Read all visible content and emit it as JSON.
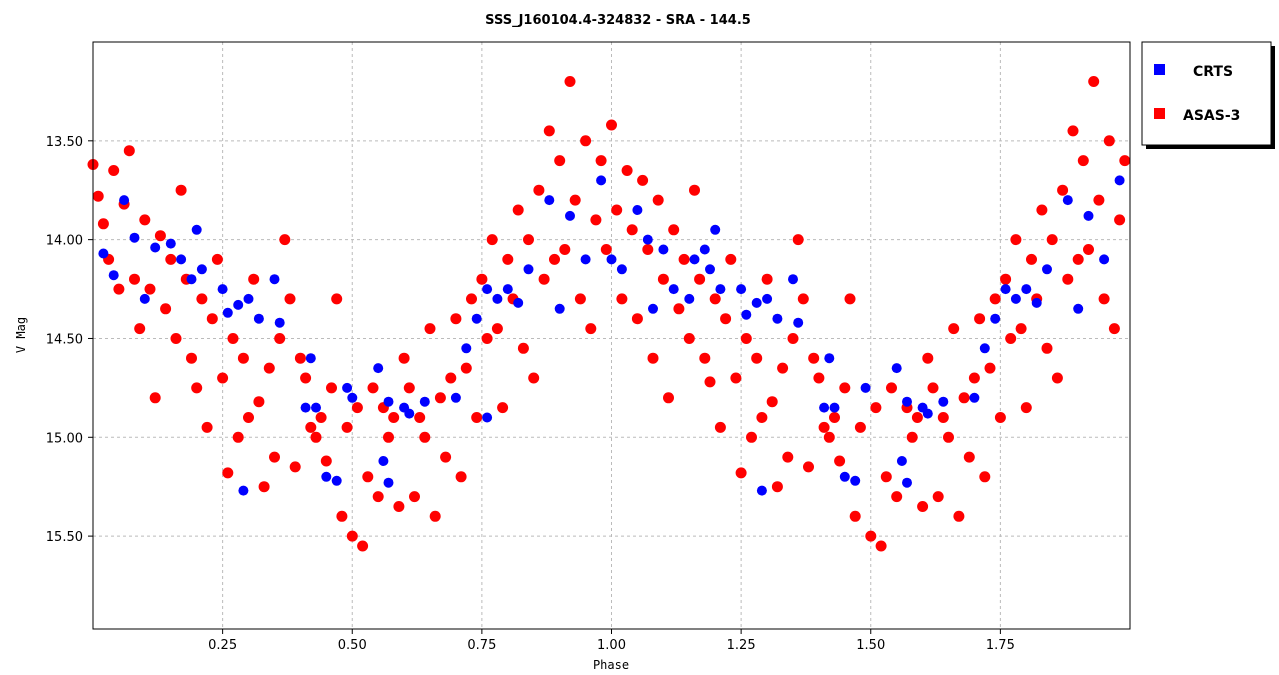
{
  "chart_data": {
    "type": "scatter",
    "title": "SSS_J160104.4-324832  -  SRA  -  144.5",
    "xlabel": "Phase",
    "ylabel": "V Mag",
    "xlim": [
      0.0,
      2.0
    ],
    "ylim": [
      15.97,
      13.0
    ],
    "y_inverted": true,
    "grid": true,
    "grid_style": "dashed",
    "legend_position": "outside-top-right",
    "xticks": [
      0.25,
      0.5,
      0.75,
      1.0,
      1.25,
      1.5,
      1.75
    ],
    "xtick_labels": [
      "0.25",
      "0.50",
      "0.75",
      "1.00",
      "1.25",
      "1.50",
      "1.75"
    ],
    "yticks": [
      13.5,
      14.0,
      14.5,
      15.0,
      15.5
    ],
    "ytick_labels": [
      "13.50",
      "14.00",
      "14.50",
      "15.00",
      "15.50"
    ],
    "series": [
      {
        "name": "CRTS",
        "color": "#0000ff",
        "points": [
          [
            0.02,
            14.07
          ],
          [
            0.04,
            14.18
          ],
          [
            0.06,
            13.8
          ],
          [
            0.08,
            13.99
          ],
          [
            0.1,
            14.3
          ],
          [
            0.12,
            14.04
          ],
          [
            0.15,
            14.02
          ],
          [
            0.17,
            14.1
          ],
          [
            0.19,
            14.2
          ],
          [
            0.2,
            13.95
          ],
          [
            0.21,
            14.15
          ],
          [
            0.25,
            14.25
          ],
          [
            0.26,
            14.37
          ],
          [
            0.28,
            14.33
          ],
          [
            0.29,
            15.27
          ],
          [
            0.3,
            14.3
          ],
          [
            0.32,
            14.4
          ],
          [
            0.35,
            14.2
          ],
          [
            0.36,
            14.42
          ],
          [
            0.42,
            14.6
          ],
          [
            0.41,
            14.85
          ],
          [
            0.43,
            14.85
          ],
          [
            0.45,
            15.2
          ],
          [
            0.47,
            15.22
          ],
          [
            0.49,
            14.75
          ],
          [
            0.5,
            14.8
          ],
          [
            0.55,
            14.65
          ],
          [
            0.56,
            15.12
          ],
          [
            0.57,
            15.23
          ],
          [
            0.57,
            14.82
          ],
          [
            0.6,
            14.85
          ],
          [
            0.61,
            14.88
          ],
          [
            0.64,
            14.82
          ],
          [
            0.7,
            14.8
          ],
          [
            0.72,
            14.55
          ],
          [
            0.74,
            14.4
          ],
          [
            0.76,
            14.25
          ],
          [
            0.76,
            14.9
          ],
          [
            0.78,
            14.3
          ],
          [
            0.8,
            14.25
          ],
          [
            0.82,
            14.32
          ],
          [
            0.84,
            14.15
          ],
          [
            0.88,
            13.8
          ],
          [
            0.9,
            14.35
          ],
          [
            0.92,
            13.88
          ],
          [
            0.95,
            14.1
          ],
          [
            0.98,
            13.7
          ],
          [
            1.0,
            14.1
          ],
          [
            1.02,
            14.15
          ],
          [
            1.05,
            13.85
          ],
          [
            1.07,
            14.0
          ],
          [
            1.08,
            14.35
          ],
          [
            1.1,
            14.05
          ],
          [
            1.12,
            14.25
          ],
          [
            1.15,
            14.3
          ],
          [
            1.16,
            14.1
          ],
          [
            1.18,
            14.05
          ],
          [
            1.19,
            14.15
          ],
          [
            1.2,
            13.95
          ],
          [
            1.21,
            14.25
          ],
          [
            1.25,
            14.25
          ],
          [
            1.26,
            14.38
          ],
          [
            1.28,
            14.32
          ],
          [
            1.29,
            15.27
          ],
          [
            1.3,
            14.3
          ],
          [
            1.32,
            14.4
          ],
          [
            1.35,
            14.2
          ],
          [
            1.36,
            14.42
          ],
          [
            1.42,
            14.6
          ],
          [
            1.41,
            14.85
          ],
          [
            1.43,
            14.85
          ],
          [
            1.45,
            15.2
          ],
          [
            1.47,
            15.22
          ],
          [
            1.49,
            14.75
          ],
          [
            1.55,
            14.65
          ],
          [
            1.56,
            15.12
          ],
          [
            1.57,
            15.23
          ],
          [
            1.57,
            14.82
          ],
          [
            1.6,
            14.85
          ],
          [
            1.61,
            14.88
          ],
          [
            1.64,
            14.82
          ],
          [
            1.7,
            14.8
          ],
          [
            1.72,
            14.55
          ],
          [
            1.74,
            14.4
          ],
          [
            1.76,
            14.25
          ],
          [
            1.78,
            14.3
          ],
          [
            1.8,
            14.25
          ],
          [
            1.82,
            14.32
          ],
          [
            1.84,
            14.15
          ],
          [
            1.88,
            13.8
          ],
          [
            1.9,
            14.35
          ],
          [
            1.92,
            13.88
          ],
          [
            1.95,
            14.1
          ],
          [
            1.98,
            13.7
          ]
        ]
      },
      {
        "name": "ASAS-3",
        "color": "#ff0000",
        "points": [
          [
            0.0,
            13.62
          ],
          [
            0.01,
            13.78
          ],
          [
            0.02,
            13.92
          ],
          [
            0.03,
            14.1
          ],
          [
            0.04,
            13.65
          ],
          [
            0.05,
            14.25
          ],
          [
            0.06,
            13.82
          ],
          [
            0.07,
            13.55
          ],
          [
            0.08,
            14.2
          ],
          [
            0.09,
            14.45
          ],
          [
            0.1,
            13.9
          ],
          [
            0.11,
            14.25
          ],
          [
            0.12,
            14.8
          ],
          [
            0.13,
            13.98
          ],
          [
            0.14,
            14.35
          ],
          [
            0.15,
            14.1
          ],
          [
            0.16,
            14.5
          ],
          [
            0.17,
            13.75
          ],
          [
            0.18,
            14.2
          ],
          [
            0.19,
            14.6
          ],
          [
            0.2,
            14.75
          ],
          [
            0.21,
            14.3
          ],
          [
            0.22,
            14.95
          ],
          [
            0.23,
            14.4
          ],
          [
            0.24,
            14.1
          ],
          [
            0.25,
            14.7
          ],
          [
            0.26,
            15.18
          ],
          [
            0.27,
            14.5
          ],
          [
            0.28,
            15.0
          ],
          [
            0.29,
            14.6
          ],
          [
            0.3,
            14.9
          ],
          [
            0.31,
            14.2
          ],
          [
            0.32,
            14.82
          ],
          [
            0.33,
            15.25
          ],
          [
            0.34,
            14.65
          ],
          [
            0.35,
            15.1
          ],
          [
            0.36,
            14.5
          ],
          [
            0.37,
            14.0
          ],
          [
            0.38,
            14.3
          ],
          [
            0.39,
            15.15
          ],
          [
            0.4,
            14.6
          ],
          [
            0.41,
            14.7
          ],
          [
            0.42,
            14.95
          ],
          [
            0.43,
            15.0
          ],
          [
            0.44,
            14.9
          ],
          [
            0.45,
            15.12
          ],
          [
            0.46,
            14.75
          ],
          [
            0.47,
            14.3
          ],
          [
            0.48,
            15.4
          ],
          [
            0.49,
            14.95
          ],
          [
            0.5,
            15.5
          ],
          [
            0.51,
            14.85
          ],
          [
            0.52,
            15.55
          ],
          [
            0.53,
            15.2
          ],
          [
            0.54,
            14.75
          ],
          [
            0.55,
            15.3
          ],
          [
            0.56,
            14.85
          ],
          [
            0.57,
            15.0
          ],
          [
            0.58,
            14.9
          ],
          [
            0.59,
            15.35
          ],
          [
            0.6,
            14.6
          ],
          [
            0.61,
            14.75
          ],
          [
            0.62,
            15.3
          ],
          [
            0.63,
            14.9
          ],
          [
            0.64,
            15.0
          ],
          [
            0.65,
            14.45
          ],
          [
            0.66,
            15.4
          ],
          [
            0.67,
            14.8
          ],
          [
            0.68,
            15.1
          ],
          [
            0.69,
            14.7
          ],
          [
            0.7,
            14.4
          ],
          [
            0.71,
            15.2
          ],
          [
            0.72,
            14.65
          ],
          [
            0.73,
            14.3
          ],
          [
            0.74,
            14.9
          ],
          [
            0.75,
            14.2
          ],
          [
            0.76,
            14.5
          ],
          [
            0.77,
            14.0
          ],
          [
            0.78,
            14.45
          ],
          [
            0.79,
            14.85
          ],
          [
            0.8,
            14.1
          ],
          [
            0.81,
            14.3
          ],
          [
            0.82,
            13.85
          ],
          [
            0.83,
            14.55
          ],
          [
            0.84,
            14.0
          ],
          [
            0.85,
            14.7
          ],
          [
            0.86,
            13.75
          ],
          [
            0.87,
            14.2
          ],
          [
            0.88,
            13.45
          ],
          [
            0.89,
            14.1
          ],
          [
            0.9,
            13.6
          ],
          [
            0.91,
            14.05
          ],
          [
            0.92,
            13.2
          ],
          [
            0.93,
            13.8
          ],
          [
            0.94,
            14.3
          ],
          [
            0.95,
            13.5
          ],
          [
            0.96,
            14.45
          ],
          [
            0.97,
            13.9
          ],
          [
            0.98,
            13.6
          ],
          [
            0.99,
            14.05
          ],
          [
            1.0,
            13.42
          ],
          [
            1.01,
            13.85
          ],
          [
            1.02,
            14.3
          ],
          [
            1.03,
            13.65
          ],
          [
            1.04,
            13.95
          ],
          [
            1.05,
            14.4
          ],
          [
            1.06,
            13.7
          ],
          [
            1.07,
            14.05
          ],
          [
            1.08,
            14.6
          ],
          [
            1.09,
            13.8
          ],
          [
            1.1,
            14.2
          ],
          [
            1.11,
            14.8
          ],
          [
            1.12,
            13.95
          ],
          [
            1.13,
            14.35
          ],
          [
            1.14,
            14.1
          ],
          [
            1.15,
            14.5
          ],
          [
            1.16,
            13.75
          ],
          [
            1.17,
            14.2
          ],
          [
            1.18,
            14.6
          ],
          [
            1.19,
            14.72
          ],
          [
            1.2,
            14.3
          ],
          [
            1.21,
            14.95
          ],
          [
            1.22,
            14.4
          ],
          [
            1.23,
            14.1
          ],
          [
            1.24,
            14.7
          ],
          [
            1.25,
            15.18
          ],
          [
            1.26,
            14.5
          ],
          [
            1.27,
            15.0
          ],
          [
            1.28,
            14.6
          ],
          [
            1.29,
            14.9
          ],
          [
            1.3,
            14.2
          ],
          [
            1.31,
            14.82
          ],
          [
            1.32,
            15.25
          ],
          [
            1.33,
            14.65
          ],
          [
            1.34,
            15.1
          ],
          [
            1.35,
            14.5
          ],
          [
            1.36,
            14.0
          ],
          [
            1.37,
            14.3
          ],
          [
            1.38,
            15.15
          ],
          [
            1.39,
            14.6
          ],
          [
            1.4,
            14.7
          ],
          [
            1.41,
            14.95
          ],
          [
            1.42,
            15.0
          ],
          [
            1.43,
            14.9
          ],
          [
            1.44,
            15.12
          ],
          [
            1.45,
            14.75
          ],
          [
            1.46,
            14.3
          ],
          [
            1.47,
            15.4
          ],
          [
            1.48,
            14.95
          ],
          [
            1.5,
            15.5
          ],
          [
            1.51,
            14.85
          ],
          [
            1.52,
            15.55
          ],
          [
            1.53,
            15.2
          ],
          [
            1.54,
            14.75
          ],
          [
            1.55,
            15.3
          ],
          [
            1.57,
            14.85
          ],
          [
            1.58,
            15.0
          ],
          [
            1.59,
            14.9
          ],
          [
            1.6,
            15.35
          ],
          [
            1.61,
            14.6
          ],
          [
            1.62,
            14.75
          ],
          [
            1.63,
            15.3
          ],
          [
            1.64,
            14.9
          ],
          [
            1.65,
            15.0
          ],
          [
            1.66,
            14.45
          ],
          [
            1.67,
            15.4
          ],
          [
            1.68,
            14.8
          ],
          [
            1.69,
            15.1
          ],
          [
            1.7,
            14.7
          ],
          [
            1.71,
            14.4
          ],
          [
            1.72,
            15.2
          ],
          [
            1.73,
            14.65
          ],
          [
            1.74,
            14.3
          ],
          [
            1.75,
            14.9
          ],
          [
            1.76,
            14.2
          ],
          [
            1.77,
            14.5
          ],
          [
            1.78,
            14.0
          ],
          [
            1.79,
            14.45
          ],
          [
            1.8,
            14.85
          ],
          [
            1.81,
            14.1
          ],
          [
            1.82,
            14.3
          ],
          [
            1.83,
            13.85
          ],
          [
            1.84,
            14.55
          ],
          [
            1.85,
            14.0
          ],
          [
            1.86,
            14.7
          ],
          [
            1.87,
            13.75
          ],
          [
            1.88,
            14.2
          ],
          [
            1.89,
            13.45
          ],
          [
            1.9,
            14.1
          ],
          [
            1.91,
            13.6
          ],
          [
            1.92,
            14.05
          ],
          [
            1.93,
            13.2
          ],
          [
            1.94,
            13.8
          ],
          [
            1.95,
            14.3
          ],
          [
            1.96,
            13.5
          ],
          [
            1.97,
            14.45
          ],
          [
            1.98,
            13.9
          ],
          [
            1.99,
            13.6
          ]
        ]
      }
    ]
  }
}
